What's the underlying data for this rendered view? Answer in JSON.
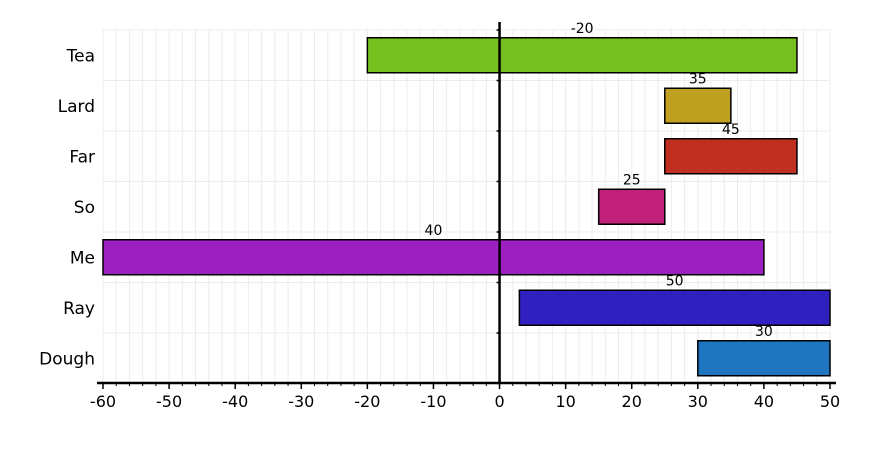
{
  "chart_data": {
    "type": "bar",
    "orientation": "horizontal",
    "floating": true,
    "categories": [
      "Tea",
      "Lard",
      "Far",
      "So",
      "Me",
      "Ray",
      "Dough"
    ],
    "ranges": [
      [
        -20,
        45
      ],
      [
        25,
        35
      ],
      [
        25,
        45
      ],
      [
        15,
        25
      ],
      [
        -60,
        40
      ],
      [
        3,
        50
      ],
      [
        30,
        50
      ]
    ],
    "data_labels": [
      "-20",
      "35",
      "45",
      "25",
      "40",
      "50",
      "30"
    ],
    "colors": [
      "#76c11f",
      "#bfa020",
      "#c03020",
      "#c0207a",
      "#9c20c0",
      "#3020c0",
      "#2075c0"
    ],
    "xlim": [
      -60,
      50
    ],
    "xticks": [
      -60,
      -50,
      -40,
      -30,
      -20,
      -10,
      0,
      10,
      20,
      30,
      40,
      50
    ],
    "grid": true,
    "legend": "none",
    "title": "",
    "xlabel": "",
    "ylabel": ""
  }
}
